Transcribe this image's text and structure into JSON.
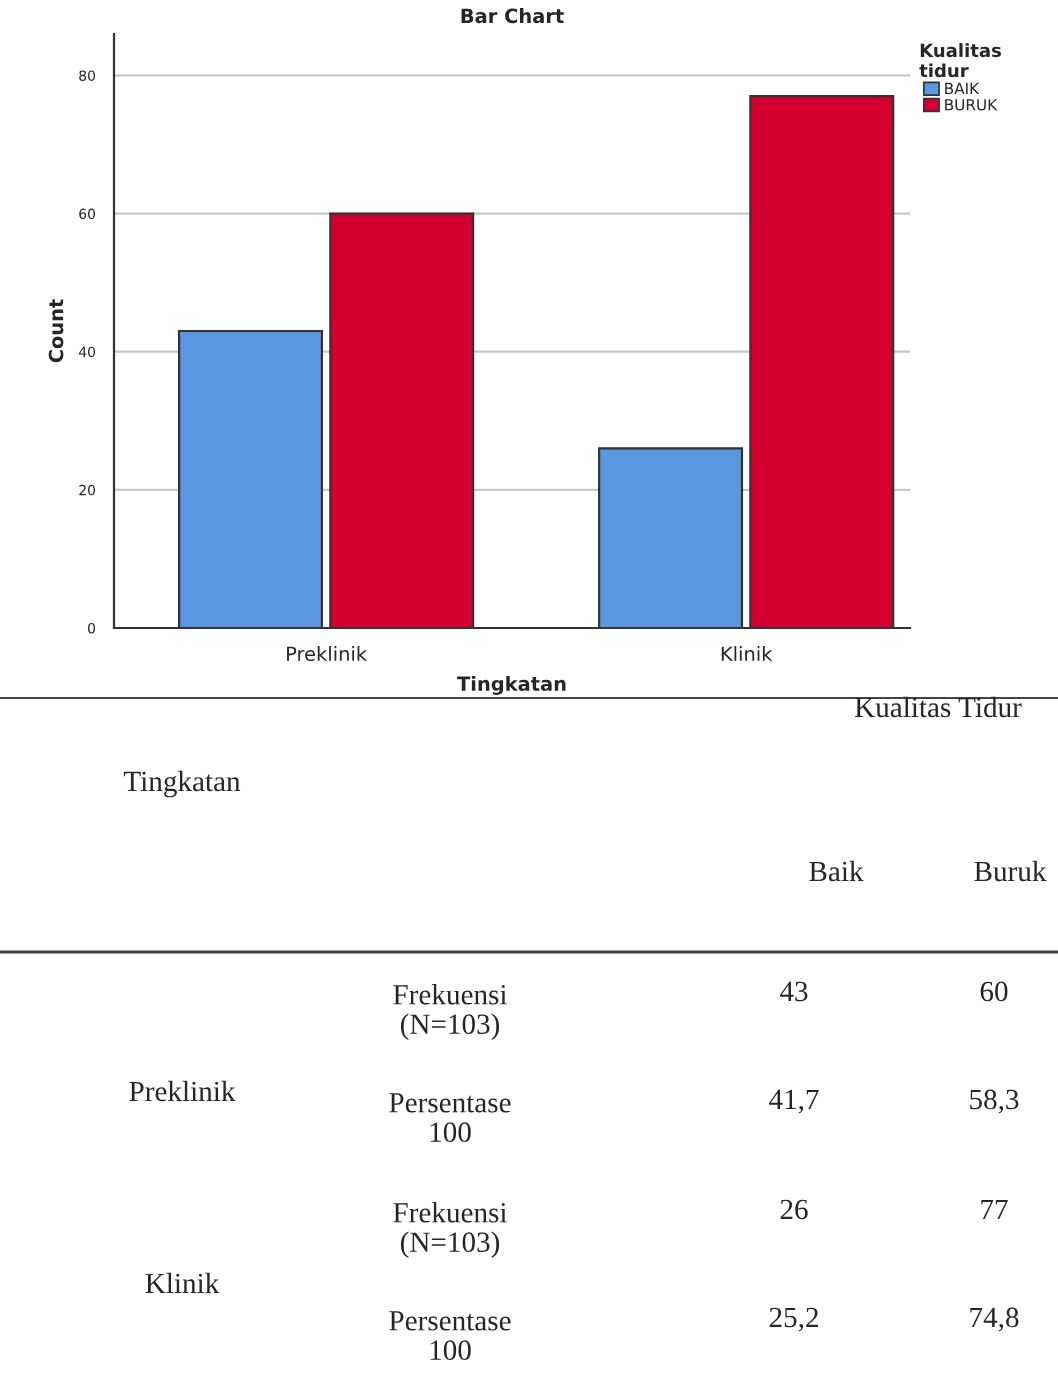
{
  "chart_data": {
    "type": "bar",
    "title": "Bar Chart",
    "xlabel": "Tingkatan",
    "ylabel": "Count",
    "legend_title": "Kualitas\ntidur",
    "categories": [
      "Preklinik",
      "Klinik"
    ],
    "series": [
      {
        "name": "BAIK",
        "color": "#5b97e0",
        "values": [
          43,
          26
        ]
      },
      {
        "name": "BURUK",
        "color": "#d3002f",
        "values": [
          60,
          77
        ]
      }
    ],
    "ylim": [
      0,
      86
    ],
    "yticks": [
      0,
      20,
      40,
      60,
      80
    ],
    "grid": "y",
    "legend": "top right",
    "annotations": [
      "Kualitas Tidur",
      "Tingkatan",
      "Baik",
      "Buruk",
      "Preklinik",
      "Frekuensi\n(N=103)",
      "Persentase\n100",
      "41,7",
      "58,3",
      "Klinik",
      "Frekuensi\n(N=103)",
      "Persentase\n100",
      "25,2",
      "74,8",
      "43",
      "60",
      "26",
      "77"
    ]
  }
}
